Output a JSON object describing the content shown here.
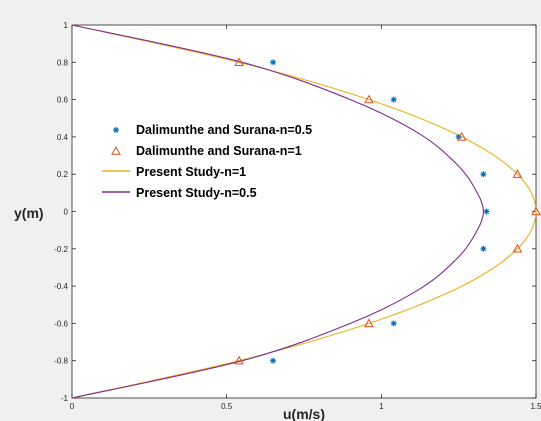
{
  "chart_data": {
    "type": "line",
    "title": "",
    "xlabel": "u(m/s)",
    "ylabel": "y(m)",
    "xlim": [
      0,
      1.5
    ],
    "ylim": [
      -1,
      1
    ],
    "xticks": [
      0,
      0.5,
      1,
      1.5
    ],
    "xtick_labels": [
      "0",
      "0.5",
      "1",
      "1.5"
    ],
    "yticks": [
      -1,
      -0.8,
      -0.6,
      -0.4,
      -0.2,
      0,
      0.2,
      0.4,
      0.6,
      0.8,
      1
    ],
    "ytick_labels": [
      "-1",
      "-0.8",
      "-0.6",
      "-0.4",
      "-0.2",
      "0",
      "0.2",
      "0.4",
      "0.6",
      "0.8",
      "1"
    ],
    "grid": false,
    "legend_position": "left-middle",
    "series": [
      {
        "name": "Dalimunthe and Surana-n=0.5",
        "kind": "scatter",
        "marker": "asterisk",
        "color": "#0072bd",
        "x": [
          0.65,
          1.04,
          1.25,
          1.33,
          1.34,
          1.33,
          1.04,
          0.65
        ],
        "y": [
          0.8,
          0.6,
          0.4,
          0.2,
          0,
          -0.2,
          -0.6,
          -0.8
        ]
      },
      {
        "name": "Dalimunthe and Surana-n=1",
        "kind": "scatter",
        "marker": "triangle",
        "color": "#d95319",
        "x": [
          0.54,
          0.96,
          1.26,
          1.44,
          1.5,
          1.44,
          0.96,
          0.54
        ],
        "y": [
          0.8,
          0.6,
          0.4,
          0.2,
          0,
          -0.2,
          -0.6,
          -0.8
        ]
      },
      {
        "name": "Present Study-n=1",
        "kind": "line",
        "color": "#edb120",
        "x": [
          0,
          0.54,
          0.96,
          1.26,
          1.44,
          1.5,
          1.44,
          1.26,
          0.96,
          0.54,
          0
        ],
        "y": [
          1,
          0.8,
          0.6,
          0.4,
          0.2,
          0,
          -0.2,
          -0.4,
          -0.6,
          -0.8,
          -1
        ]
      },
      {
        "name": "Present Study-n=0.5",
        "kind": "line",
        "color": "#7e2f8e",
        "x": [
          0,
          0.55,
          0.9,
          1.12,
          1.24,
          1.3,
          1.33,
          1.3,
          1.24,
          1.12,
          0.9,
          0.55,
          0
        ],
        "y": [
          1,
          0.8,
          0.6,
          0.42,
          0.26,
          0.13,
          0,
          -0.13,
          -0.26,
          -0.42,
          -0.6,
          -0.8,
          -1
        ]
      }
    ]
  }
}
